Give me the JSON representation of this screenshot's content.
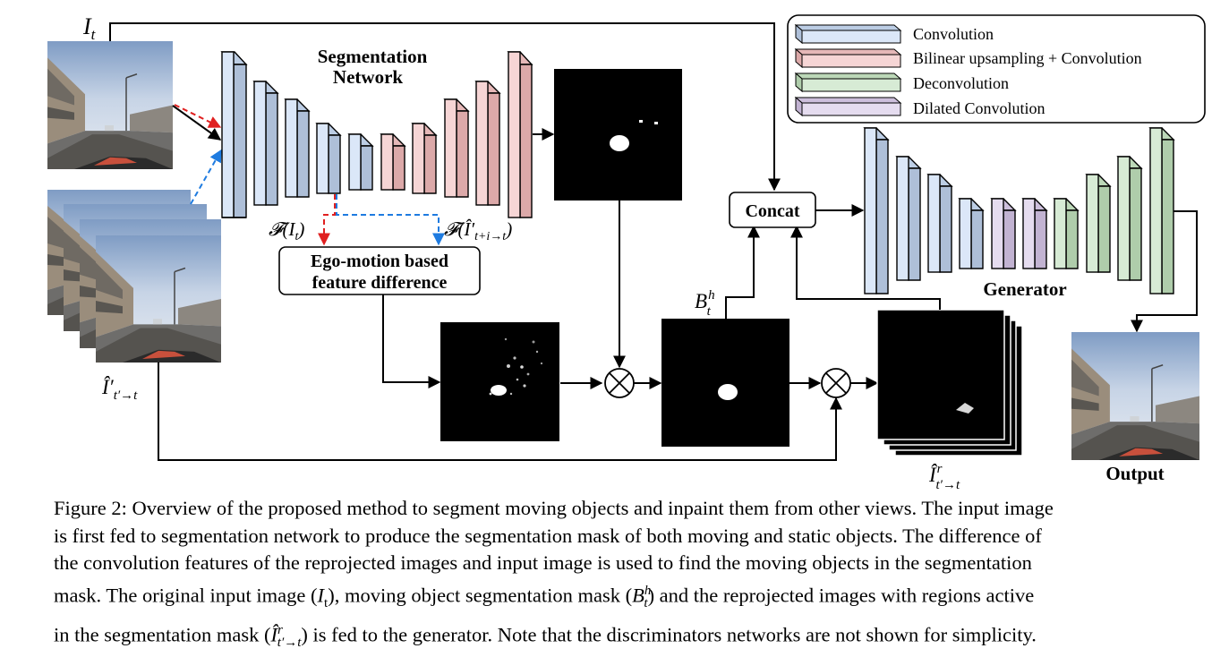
{
  "diagram": {
    "input_label": "I",
    "input_label_sub": "t",
    "reproj_label": "Î′",
    "reproj_label_sub": "t′→t",
    "seg_title_line1": "Segmentation",
    "seg_title_line2": "Network",
    "feat_left": "𝓕(I",
    "feat_left_sub": "t",
    "feat_left_close": ")",
    "feat_right": "𝓕(Î′",
    "feat_right_sub": "t+i→t",
    "feat_right_close": ")",
    "ego_line1": "Ego-motion based",
    "ego_line2": "feature difference",
    "concat_label": "Concat",
    "bh_label": "B",
    "bh_sup": "h",
    "bh_sub": "t",
    "ir_label": "Î",
    "ir_sup": "r",
    "ir_sub": "t′→t",
    "generator_label": "Generator",
    "output_label": "Output",
    "multiply_symbol": "⊗"
  },
  "legend": [
    {
      "label": "Convolution",
      "color": "#dbe7f8"
    },
    {
      "label": "Bilinear upsampling + Convolution",
      "color": "#f6d5d5"
    },
    {
      "label": "Deconvolution",
      "color": "#d7ebd5"
    },
    {
      "label": "Dilated Convolution",
      "color": "#e5dcef"
    }
  ],
  "caption": {
    "line1": "Figure 2: Overview of the proposed method to segment moving objects and inpaint them from other views. The input image",
    "line2": "is first fed to segmentation network to produce the segmentation mask of both moving and static objects. The difference of",
    "line3": "the convolution features of the reprojected images and input image is used to find the moving objects in the segmentation",
    "line4a": "mask. The original input image (",
    "line4_it": "I",
    "line4_it_sub": "t",
    "line4b": "), moving object segmentation mask (",
    "line4_b": "B",
    "line4_b_sup": "h",
    "line4_b_sub": "t",
    "line4c": ") and the reprojected images with regions active",
    "line5a": "in the segmentation mask (",
    "line5_i": "Î",
    "line5_i_sup": "r",
    "line5_i_sub": "t′→t",
    "line5b": ") is fed to the generator. Note that the discriminators networks are not shown for simplicity."
  }
}
